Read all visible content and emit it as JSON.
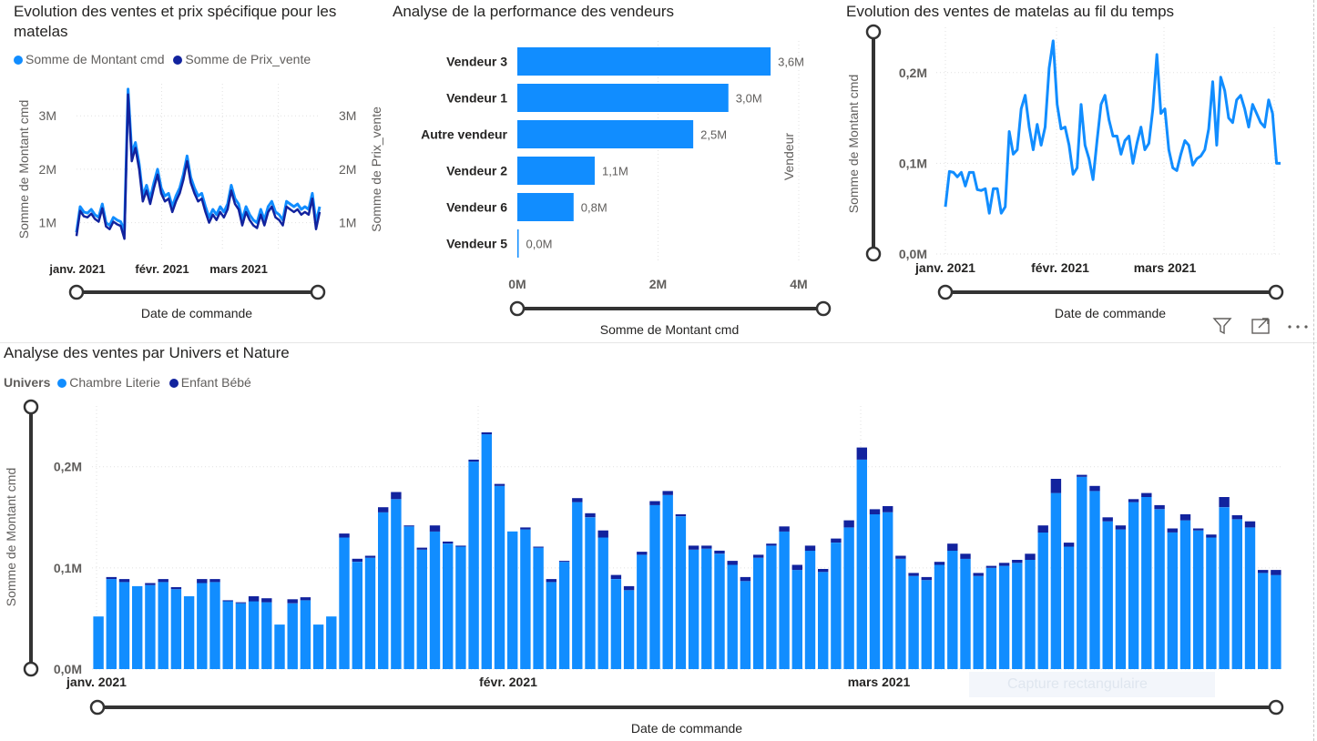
{
  "colors": {
    "light": "#118dff",
    "dark": "#12239e",
    "axis": "#605e5c",
    "slider": "#333333"
  },
  "chart_data": [
    {
      "id": "price_line",
      "type": "line",
      "title": "Evolution des ventes et prix spécifique pour les matelas",
      "xlabel": "Date de commande",
      "ylabel": "Somme de Montant cmd",
      "y2label": "Somme de Prix_vente",
      "ylim": [
        500000,
        3600000
      ],
      "y_ticks": [
        "1M",
        "2M",
        "3M"
      ],
      "x_ticks": [
        "janv. 2021",
        "févr. 2021",
        "mars 2021"
      ],
      "legend": "top-left",
      "series": [
        {
          "name": "Somme de Montant cmd",
          "values": [
            820000,
            1300000,
            1200000,
            1180000,
            1250000,
            1150000,
            1100000,
            1350000,
            1000000,
            950000,
            1100000,
            1050000,
            1020000,
            850000,
            3500000,
            2300000,
            2500000,
            2100000,
            1500000,
            1700000,
            1450000,
            1750000,
            2000000,
            1650000,
            1500000,
            1550000,
            1300000,
            1500000,
            1650000,
            1900000,
            2250000,
            1850000,
            1650000,
            1500000,
            1550000,
            1300000,
            1100000,
            1250000,
            1150000,
            1300000,
            1200000,
            1350000,
            1700000,
            1450000,
            1350000,
            1050000,
            1300000,
            1150000,
            1050000,
            1000000,
            1250000,
            1050000,
            1300000,
            1400000,
            1200000,
            1150000,
            1050000,
            1400000,
            1350000,
            1300000,
            1350000,
            1250000,
            1300000,
            1250000,
            1550000,
            1000000,
            1300000
          ]
        },
        {
          "name": "Somme de Prix_vente",
          "values": [
            750000,
            1220000,
            1120000,
            1100000,
            1170000,
            1070000,
            1020000,
            1270000,
            930000,
            880000,
            1020000,
            970000,
            940000,
            700000,
            3400000,
            2150000,
            2400000,
            2000000,
            1400000,
            1600000,
            1350000,
            1650000,
            1900000,
            1550000,
            1400000,
            1450000,
            1200000,
            1400000,
            1550000,
            1800000,
            2150000,
            1750000,
            1550000,
            1400000,
            1450000,
            1200000,
            1000000,
            1150000,
            1050000,
            1200000,
            1100000,
            1250000,
            1600000,
            1350000,
            1250000,
            950000,
            1200000,
            1050000,
            950000,
            900000,
            1150000,
            950000,
            1200000,
            1300000,
            1100000,
            1050000,
            950000,
            1300000,
            1250000,
            1200000,
            1250000,
            1150000,
            1200000,
            1150000,
            1450000,
            880000,
            1200000
          ]
        }
      ]
    },
    {
      "id": "vendor_bar",
      "type": "bar",
      "title": "Analyse de la performance des vendeurs",
      "xlabel": "Somme de Montant cmd",
      "ylabel": "Vendeur",
      "xlim": [
        0,
        4000000
      ],
      "x_ticks": [
        "0M",
        "2M",
        "4M"
      ],
      "categories": [
        "Vendeur 3",
        "Vendeur 1",
        "Autre vendeur",
        "Vendeur 2",
        "Vendeur 6",
        "Vendeur 5"
      ],
      "values": [
        3600000,
        3000000,
        2500000,
        1100000,
        800000,
        10000
      ],
      "data_labels": [
        "3,6M",
        "3,0M",
        "2,5M",
        "1,1M",
        "0,8M",
        "0,0M"
      ]
    },
    {
      "id": "matelas_line",
      "type": "line",
      "title": "Evolution des ventes de matelas au fil du temps",
      "xlabel": "Date de commande",
      "ylabel": "Somme de Montant cmd",
      "ylim": [
        0,
        250000
      ],
      "y_ticks": [
        "0,0M",
        "0,1M",
        "0,2M"
      ],
      "x_ticks": [
        "janv. 2021",
        "févr. 2021",
        "mars 2021"
      ],
      "series": [
        {
          "name": "Somme de Montant cmd",
          "values": [
            52000,
            91000,
            90000,
            85000,
            90000,
            75000,
            90000,
            90000,
            71000,
            70000,
            72000,
            45000,
            72000,
            72000,
            45000,
            52000,
            135000,
            110000,
            115000,
            160000,
            175000,
            140000,
            115000,
            143000,
            120000,
            140000,
            205000,
            235000,
            165000,
            138000,
            140000,
            120000,
            88000,
            95000,
            165000,
            120000,
            105000,
            82000,
            125000,
            165000,
            175000,
            148000,
            130000,
            130000,
            110000,
            125000,
            130000,
            100000,
            122000,
            140000,
            115000,
            122000,
            160000,
            220000,
            155000,
            160000,
            115000,
            95000,
            92000,
            110000,
            125000,
            120000,
            98000,
            105000,
            108000,
            115000,
            138000,
            190000,
            120000,
            195000,
            180000,
            150000,
            145000,
            170000,
            175000,
            160000,
            140000,
            165000,
            155000,
            145000,
            140000,
            170000,
            155000,
            100000,
            100000
          ]
        }
      ]
    },
    {
      "id": "univers_stacked",
      "type": "bar",
      "stacked": true,
      "title": "Analyse des ventes par Univers et Nature",
      "xlabel": "Date de commande",
      "ylabel": "Somme de Montant cmd",
      "ylim": [
        0,
        260000
      ],
      "y_ticks": [
        "0,0M",
        "0,1M",
        "0,2M"
      ],
      "x_ticks": [
        "janv. 2021",
        "févr. 2021",
        "mars 2021"
      ],
      "legend_title": "Univers",
      "series": [
        {
          "name": "Chambre Literie",
          "values": [
            52000,
            89000,
            86000,
            82000,
            83000,
            86000,
            79000,
            72000,
            85000,
            86000,
            67000,
            65000,
            67000,
            66000,
            44000,
            65000,
            68000,
            44000,
            52000,
            130000,
            106000,
            110000,
            155000,
            168000,
            141000,
            118000,
            136000,
            124000,
            121000,
            205000,
            232000,
            181000,
            136000,
            138000,
            120000,
            86000,
            106000,
            165000,
            150000,
            130000,
            89000,
            78000,
            113000,
            162000,
            172000,
            151000,
            118000,
            119000,
            114000,
            103000,
            87000,
            110000,
            122000,
            136000,
            98000,
            117000,
            96000,
            125000,
            140000,
            207000,
            153000,
            155000,
            109000,
            92000,
            88000,
            103000,
            117000,
            109000,
            92000,
            100000,
            102000,
            105000,
            108000,
            135000,
            174000,
            121000,
            190000,
            176000,
            146000,
            138000,
            165000,
            170000,
            158000,
            135000,
            147000,
            137000,
            130000,
            160000,
            148000,
            140000,
            95000,
            93000
          ]
        },
        {
          "name": "Enfant Bébé",
          "values": [
            0,
            2000,
            3000,
            0,
            2000,
            3000,
            2000,
            0,
            4000,
            3000,
            1000,
            1000,
            5000,
            4000,
            0,
            4000,
            3000,
            0,
            0,
            4000,
            3000,
            2000,
            5000,
            7000,
            1000,
            2000,
            6000,
            2000,
            1000,
            2000,
            2000,
            2000,
            0,
            2000,
            1000,
            3000,
            1000,
            4000,
            4000,
            7000,
            4000,
            4000,
            3000,
            4000,
            4000,
            2000,
            4000,
            3000,
            3000,
            4000,
            4000,
            3000,
            2000,
            5000,
            5000,
            5000,
            3000,
            4000,
            7000,
            12000,
            5000,
            6000,
            3000,
            3000,
            3000,
            3000,
            7000,
            5000,
            3000,
            2000,
            3000,
            3000,
            6000,
            7000,
            14000,
            4000,
            2000,
            5000,
            4000,
            4000,
            3000,
            4000,
            4000,
            4000,
            6000,
            2000,
            3000,
            10000,
            4000,
            6000,
            3000,
            5000
          ]
        }
      ]
    }
  ],
  "ui": {
    "slider_labels": {
      "price": "Date de commande",
      "vendor": "Somme de Montant cmd",
      "matelas": "Date de commande",
      "univers": "Date de commande"
    },
    "icons": [
      "filter-icon",
      "focus-mode-icon",
      "more-options-icon"
    ],
    "ghost_tooltip": "Capture rectangulaire"
  }
}
